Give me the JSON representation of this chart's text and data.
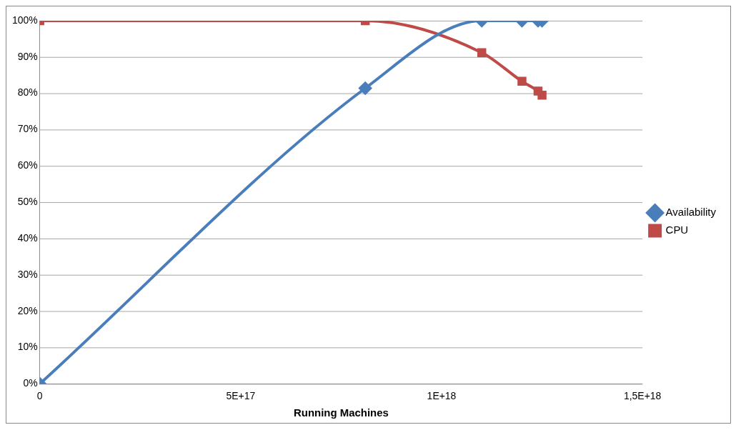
{
  "chart_data": {
    "type": "line",
    "xlabel": "Running Machines",
    "xlim": [
      0,
      1.5e+18
    ],
    "xticks": [
      {
        "value": 0,
        "label": "0"
      },
      {
        "value": 5e+17,
        "label": "5E+17"
      },
      {
        "value": 1e+18,
        "label": "1E+18"
      },
      {
        "value": 1.5e+18,
        "label": "1,5E+18"
      }
    ],
    "ylim": [
      0,
      100
    ],
    "yticks": [
      {
        "value": 0,
        "label": "0%"
      },
      {
        "value": 10,
        "label": "10%"
      },
      {
        "value": 20,
        "label": "20%"
      },
      {
        "value": 30,
        "label": "30%"
      },
      {
        "value": 40,
        "label": "40%"
      },
      {
        "value": 50,
        "label": "50%"
      },
      {
        "value": 60,
        "label": "60%"
      },
      {
        "value": 70,
        "label": "70%"
      },
      {
        "value": 80,
        "label": "80%"
      },
      {
        "value": 90,
        "label": "90%"
      },
      {
        "value": 100,
        "label": "100%"
      }
    ],
    "grid": "y",
    "legend": "right",
    "series": [
      {
        "name": "Availability",
        "color": "#4a7ebb",
        "marker": "diamond",
        "x": [
          0,
          8.1e+17,
          1.1e+18,
          1.2e+18,
          1.24e+18,
          1.25e+18
        ],
        "values": [
          0,
          81.4,
          100,
          100,
          100,
          100
        ]
      },
      {
        "name": "CPU",
        "color": "#be4b48",
        "marker": "square",
        "x": [
          0,
          8.1e+17,
          1.1e+18,
          1.2e+18,
          1.24e+18,
          1.25e+18
        ],
        "values": [
          100,
          100,
          91.2,
          83.3,
          80.6,
          79.5
        ]
      }
    ]
  }
}
